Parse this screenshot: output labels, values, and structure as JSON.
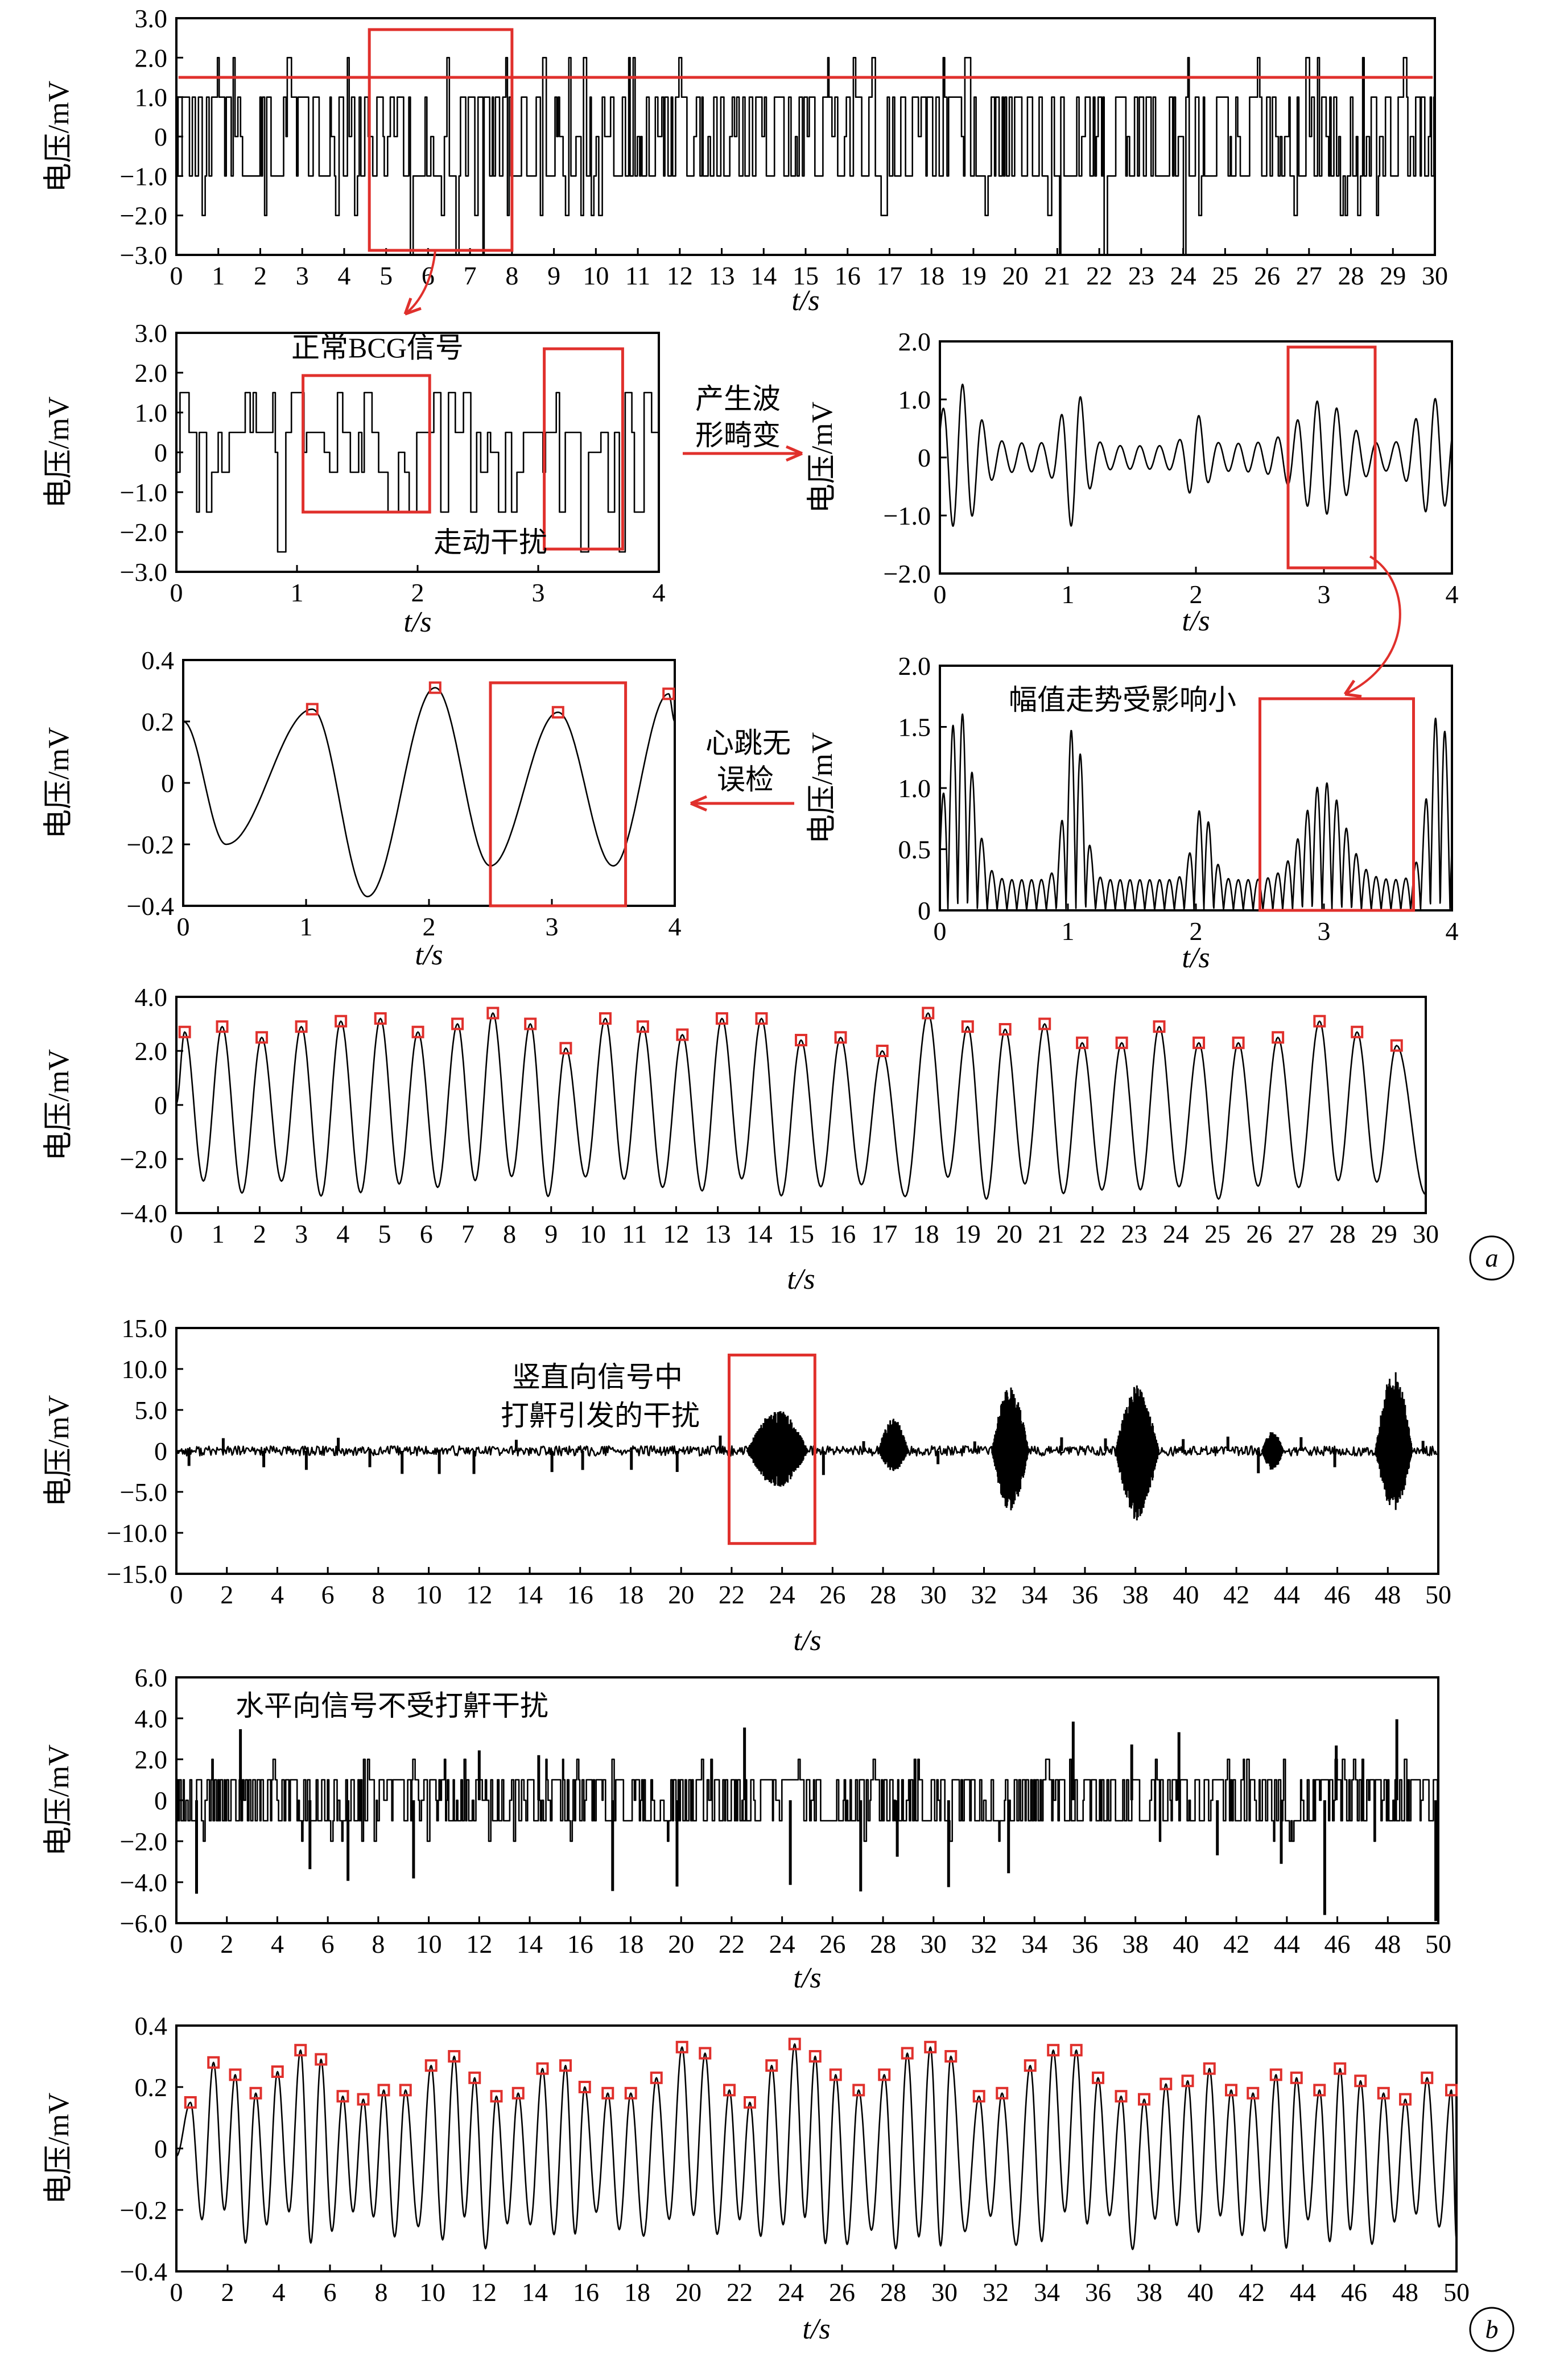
{
  "figure": {
    "panel_a_label": "a",
    "panel_b_label": "b"
  },
  "colors": {
    "accent": "#e0302c",
    "trace": "#000000",
    "background": "#ffffff"
  },
  "annotations": {
    "normal_bcg": "正常BCG信号",
    "walking_interference": "走动干扰",
    "waveform_distortion_line1": "产生波",
    "waveform_distortion_line2": "形畸变",
    "amplitude_trend": "幅值走势受影响小",
    "no_false_detect_line1": "心跳无",
    "no_false_detect_line2": "误检",
    "snore_line1": "竖直向信号中",
    "snore_line2": "打鼾引发的干扰",
    "horizontal_no_snore": "水平向信号不受打鼾干扰"
  },
  "chart_data": [
    {
      "id": "a1",
      "type": "line",
      "title": "",
      "xlabel": "t/s",
      "ylabel": "电压/mV",
      "xlim": [
        0,
        30
      ],
      "ylim": [
        -3,
        3
      ],
      "xticks": [
        "0",
        "1",
        "2",
        "3",
        "4",
        "5",
        "6",
        "7",
        "8",
        "9",
        "10",
        "11",
        "12",
        "13",
        "14",
        "15",
        "16",
        "17",
        "18",
        "19",
        "20",
        "21",
        "22",
        "23",
        "24",
        "25",
        "26",
        "27",
        "28",
        "29",
        "30"
      ],
      "yticks": [
        "−3.0",
        "−2.0",
        "−1.0",
        "0",
        "1.0",
        "2.0",
        "3.0"
      ],
      "signal": "quantized raw BCG signal, mostly between −1.0 and 1.0 mV with spikes to 2.0 and −2.0/−3.0 mV",
      "threshold_line_mV": 1.5,
      "highlight_range_s": [
        4.6,
        8.0
      ]
    },
    {
      "id": "a2",
      "type": "line",
      "xlabel": "t/s",
      "ylabel": "电压/mV",
      "xlim": [
        0,
        4
      ],
      "ylim": [
        -3,
        3
      ],
      "xticks": [
        "0",
        "1",
        "2",
        "3",
        "4"
      ],
      "yticks": [
        "−3.0",
        "−2.0",
        "−1.0",
        "0",
        "1.0",
        "2.0",
        "3.0"
      ],
      "highlight_ranges_s": [
        [
          1.05,
          2.1
        ],
        [
          3.05,
          3.7
        ]
      ]
    },
    {
      "id": "a3",
      "type": "line",
      "xlabel": "t/s",
      "ylabel": "电压/mV",
      "xlim": [
        0,
        4
      ],
      "ylim": [
        -2,
        2
      ],
      "xticks": [
        "0",
        "1",
        "2",
        "3",
        "4"
      ],
      "yticks": [
        "−2.0",
        "−1.0",
        "0",
        "1.0",
        "2.0"
      ],
      "highlight_range_s": [
        2.72,
        3.4
      ]
    },
    {
      "id": "a4",
      "type": "line",
      "xlabel": "t/s",
      "ylabel": "电压/mV",
      "xlim": [
        0,
        4
      ],
      "ylim": [
        -0.4,
        0.4
      ],
      "xticks": [
        "0",
        "1",
        "2",
        "3",
        "4"
      ],
      "yticks": [
        "−0.4",
        "−0.2",
        "0",
        "0.2",
        "0.4"
      ],
      "highlight_range_s": [
        2.5,
        3.6
      ],
      "peaks": [
        [
          1.05,
          0.24
        ],
        [
          2.05,
          0.31
        ],
        [
          3.05,
          0.23
        ],
        [
          3.95,
          0.29
        ]
      ]
    },
    {
      "id": "a5",
      "type": "line",
      "xlabel": "t/s",
      "ylabel": "电压/mV",
      "xlim": [
        0,
        4
      ],
      "ylim": [
        0,
        2
      ],
      "xticks": [
        "0",
        "1",
        "2",
        "3",
        "4"
      ],
      "yticks": [
        "0",
        "0.5",
        "1.0",
        "1.5",
        "2.0"
      ],
      "highlight_range_s": [
        2.5,
        3.7
      ]
    },
    {
      "id": "a6",
      "type": "line",
      "xlabel": "t/s",
      "ylabel": "电压/mV",
      "xlim": [
        0,
        30
      ],
      "ylim": [
        -4,
        4
      ],
      "xticks": [
        "0",
        "1",
        "2",
        "3",
        "4",
        "5",
        "6",
        "7",
        "8",
        "9",
        "10",
        "11",
        "12",
        "13",
        "14",
        "15",
        "16",
        "17",
        "18",
        "19",
        "20",
        "21",
        "22",
        "23",
        "24",
        "25",
        "26",
        "27",
        "28",
        "29",
        "30"
      ],
      "yticks": [
        "−4.0",
        "−2.0",
        "0",
        "2.0",
        "4.0"
      ],
      "peaks": [
        [
          0.2,
          2.7
        ],
        [
          1.1,
          2.9
        ],
        [
          2.05,
          2.5
        ],
        [
          3.0,
          2.9
        ],
        [
          3.95,
          3.1
        ],
        [
          4.9,
          3.2
        ],
        [
          5.8,
          2.7
        ],
        [
          6.75,
          3.0
        ],
        [
          7.6,
          3.4
        ],
        [
          8.5,
          3.0
        ],
        [
          9.35,
          2.1
        ],
        [
          10.3,
          3.2
        ],
        [
          11.2,
          2.9
        ],
        [
          12.15,
          2.6
        ],
        [
          13.1,
          3.2
        ],
        [
          14.05,
          3.2
        ],
        [
          15.0,
          2.4
        ],
        [
          15.95,
          2.5
        ],
        [
          16.95,
          2.0
        ],
        [
          18.05,
          3.4
        ],
        [
          19.0,
          2.9
        ],
        [
          19.9,
          2.8
        ],
        [
          20.85,
          3.0
        ],
        [
          21.75,
          2.3
        ],
        [
          22.7,
          2.3
        ],
        [
          23.6,
          2.9
        ],
        [
          24.55,
          2.3
        ],
        [
          25.5,
          2.3
        ],
        [
          26.45,
          2.5
        ],
        [
          27.45,
          3.1
        ],
        [
          28.35,
          2.7
        ],
        [
          29.3,
          2.2
        ]
      ]
    },
    {
      "id": "b1",
      "type": "line",
      "xlabel": "t/s",
      "ylabel": "电压/mV",
      "xlim": [
        0,
        50
      ],
      "ylim": [
        -15,
        15
      ],
      "xticks": [
        "0",
        "2",
        "4",
        "6",
        "8",
        "10",
        "12",
        "14",
        "16",
        "18",
        "20",
        "22",
        "24",
        "26",
        "28",
        "30",
        "32",
        "34",
        "36",
        "38",
        "40",
        "42",
        "44",
        "46",
        "48",
        "50"
      ],
      "yticks": [
        "−15.0",
        "−10.0",
        "−5.0",
        "0",
        "5.0",
        "10.0",
        "15.0"
      ],
      "bursts": [
        [
          22.6,
          25.4,
          5.0,
          4.5
        ],
        [
          27.8,
          29.2,
          4.0,
          2.5
        ],
        [
          32.3,
          34.0,
          8.0,
          7.5
        ],
        [
          37.2,
          39.2,
          8.0,
          8.5
        ],
        [
          43.0,
          44.0,
          2.5,
          2.5
        ],
        [
          47.5,
          49.2,
          10.0,
          7.5
        ]
      ],
      "highlight_range_s": [
        21.9,
        25.3
      ]
    },
    {
      "id": "b2",
      "type": "line",
      "xlabel": "t/s",
      "ylabel": "电压/mV",
      "xlim": [
        0,
        50
      ],
      "ylim": [
        -6,
        6
      ],
      "xticks": [
        "0",
        "2",
        "4",
        "6",
        "8",
        "10",
        "12",
        "14",
        "16",
        "18",
        "20",
        "22",
        "24",
        "26",
        "28",
        "30",
        "32",
        "34",
        "36",
        "38",
        "40",
        "42",
        "44",
        "46",
        "48",
        "50"
      ],
      "yticks": [
        "−6.0",
        "−4.0",
        "−2.0",
        "0",
        "2.0",
        "4.0",
        "6.0"
      ]
    },
    {
      "id": "b3",
      "type": "line",
      "xlabel": "t/s",
      "ylabel": "电压/mV",
      "xlim": [
        0,
        50
      ],
      "ylim": [
        -0.4,
        0.4
      ],
      "xticks": [
        "0",
        "2",
        "4",
        "6",
        "8",
        "10",
        "12",
        "14",
        "16",
        "18",
        "20",
        "22",
        "24",
        "26",
        "28",
        "30",
        "32",
        "34",
        "36",
        "38",
        "40",
        "42",
        "44",
        "46",
        "48",
        "50"
      ],
      "yticks": [
        "−0.4",
        "−0.2",
        "0",
        "0.2",
        "0.4"
      ],
      "peaks": [
        [
          0.55,
          0.15
        ],
        [
          1.45,
          0.28
        ],
        [
          2.3,
          0.24
        ],
        [
          3.1,
          0.18
        ],
        [
          3.95,
          0.25
        ],
        [
          4.85,
          0.32
        ],
        [
          5.65,
          0.29
        ],
        [
          6.5,
          0.17
        ],
        [
          7.3,
          0.16
        ],
        [
          8.1,
          0.19
        ],
        [
          8.95,
          0.19
        ],
        [
          9.95,
          0.27
        ],
        [
          10.85,
          0.3
        ],
        [
          11.65,
          0.23
        ],
        [
          12.5,
          0.17
        ],
        [
          13.35,
          0.18
        ],
        [
          14.3,
          0.26
        ],
        [
          15.2,
          0.27
        ],
        [
          15.95,
          0.2
        ],
        [
          16.85,
          0.18
        ],
        [
          17.75,
          0.18
        ],
        [
          18.75,
          0.23
        ],
        [
          19.75,
          0.33
        ],
        [
          20.65,
          0.31
        ],
        [
          21.6,
          0.19
        ],
        [
          22.4,
          0.15
        ],
        [
          23.25,
          0.27
        ],
        [
          24.15,
          0.34
        ],
        [
          24.95,
          0.3
        ],
        [
          25.75,
          0.24
        ],
        [
          26.65,
          0.19
        ],
        [
          27.65,
          0.24
        ],
        [
          28.55,
          0.31
        ],
        [
          29.45,
          0.33
        ],
        [
          30.25,
          0.3
        ],
        [
          31.35,
          0.17
        ],
        [
          32.25,
          0.18
        ],
        [
          33.35,
          0.27
        ],
        [
          34.25,
          0.32
        ],
        [
          35.15,
          0.32
        ],
        [
          36.0,
          0.23
        ],
        [
          36.9,
          0.17
        ],
        [
          37.8,
          0.16
        ],
        [
          38.65,
          0.21
        ],
        [
          39.5,
          0.22
        ],
        [
          40.35,
          0.26
        ],
        [
          41.2,
          0.19
        ],
        [
          42.05,
          0.18
        ],
        [
          42.95,
          0.24
        ],
        [
          43.75,
          0.23
        ],
        [
          44.65,
          0.19
        ],
        [
          45.45,
          0.26
        ],
        [
          46.25,
          0.22
        ],
        [
          47.15,
          0.18
        ],
        [
          48.0,
          0.16
        ],
        [
          48.85,
          0.23
        ],
        [
          49.8,
          0.19
        ]
      ]
    }
  ]
}
